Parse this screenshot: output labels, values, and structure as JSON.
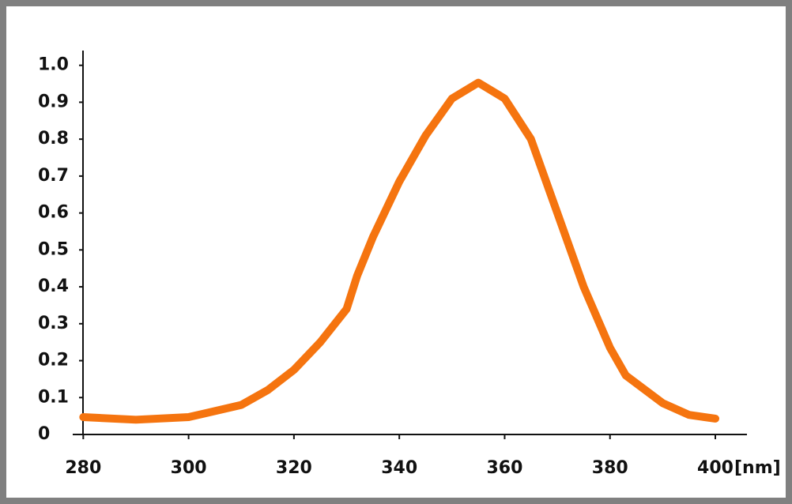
{
  "chart_data": {
    "type": "line",
    "x": [
      280,
      290,
      300,
      310,
      315,
      320,
      325,
      330,
      332,
      335,
      340,
      345,
      350,
      355,
      360,
      365,
      370,
      375,
      380,
      383,
      390,
      395,
      400
    ],
    "series": [
      {
        "color": "#f5740f",
        "values": [
          0.047,
          0.04,
          0.047,
          0.08,
          0.12,
          0.175,
          0.25,
          0.34,
          0.43,
          0.535,
          0.685,
          0.81,
          0.91,
          0.953,
          0.91,
          0.8,
          0.6,
          0.4,
          0.235,
          0.16,
          0.085,
          0.053,
          0.043
        ]
      }
    ],
    "x_label": "[nm]",
    "xlim": [
      278,
      406
    ],
    "xticks": [
      280,
      300,
      320,
      340,
      360,
      380,
      400
    ],
    "ylim": [
      0,
      1.04
    ],
    "yticks": [
      0,
      0.1,
      0.2,
      0.3,
      0.4,
      0.5,
      0.6,
      0.7,
      0.8,
      0.9,
      {
        "value": 1,
        "label": "1.0"
      }
    ]
  }
}
